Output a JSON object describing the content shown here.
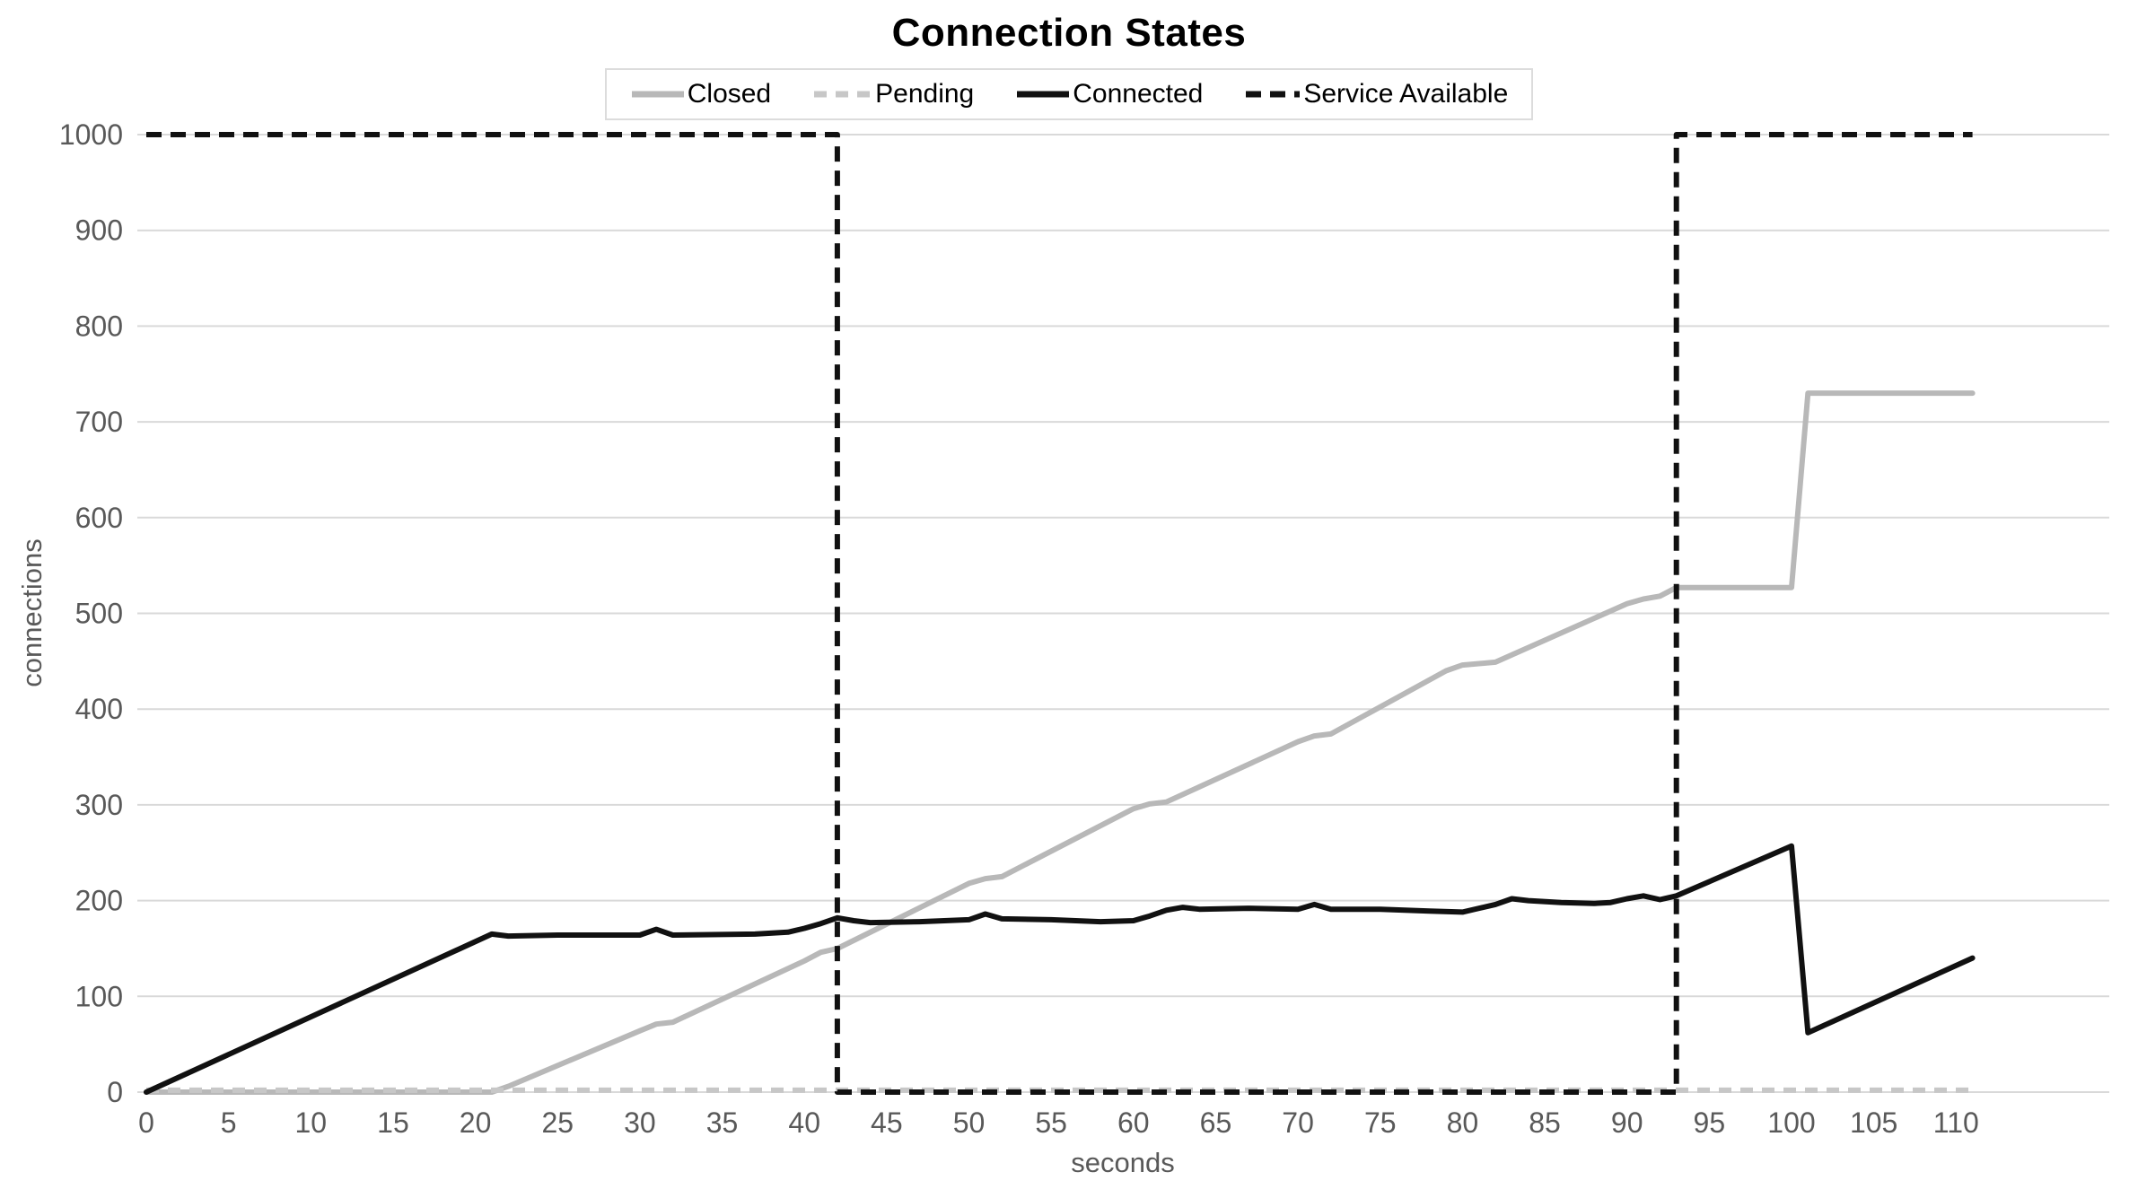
{
  "title": "Connection States",
  "legend": {
    "position": "top",
    "items": [
      {
        "label": "Closed"
      },
      {
        "label": "Pending"
      },
      {
        "label": "Connected"
      },
      {
        "label": "Service Available"
      }
    ]
  },
  "colors": {
    "closed_line": "#b8b8b8",
    "pending_line": "#c7c7c7",
    "connected_line": "#111111",
    "service_available_line": "#111111",
    "gridline": "#d9d9d9",
    "tick_text": "#595959",
    "title_text": "#000000",
    "legend_border": "#dcdcdc"
  },
  "chart_data": {
    "type": "line",
    "title": "Connection States",
    "xlabel": "seconds",
    "ylabel": "connections",
    "xlim": [
      0,
      119
    ],
    "ylim": [
      0,
      1000
    ],
    "x_ticks": [
      0,
      5,
      10,
      15,
      20,
      25,
      30,
      35,
      40,
      45,
      50,
      55,
      60,
      65,
      70,
      75,
      80,
      85,
      90,
      95,
      100,
      105,
      110
    ],
    "y_ticks": [
      0,
      100,
      200,
      300,
      400,
      500,
      600,
      700,
      800,
      900,
      1000
    ],
    "grid": "horizontal",
    "legend_position": "top",
    "series": [
      {
        "name": "Closed",
        "color": "#b8b8b8",
        "style": "solid",
        "width": 6,
        "dash": null,
        "points": [
          [
            0,
            0
          ],
          [
            21,
            0
          ],
          [
            22,
            6
          ],
          [
            30,
            64
          ],
          [
            31,
            71
          ],
          [
            32,
            73
          ],
          [
            40,
            137
          ],
          [
            41,
            146
          ],
          [
            42,
            150
          ],
          [
            50,
            218
          ],
          [
            51,
            223
          ],
          [
            52,
            225
          ],
          [
            60,
            296
          ],
          [
            61,
            301
          ],
          [
            62,
            303
          ],
          [
            70,
            366
          ],
          [
            71,
            372
          ],
          [
            72,
            374
          ],
          [
            79,
            440
          ],
          [
            80,
            446
          ],
          [
            82,
            449
          ],
          [
            90,
            510
          ],
          [
            91,
            515
          ],
          [
            92,
            518
          ],
          [
            93,
            527
          ],
          [
            100,
            527
          ],
          [
            101,
            730
          ],
          [
            111,
            730
          ]
        ]
      },
      {
        "name": "Pending",
        "color": "#c7c7c7",
        "style": "dashed",
        "width": 6,
        "dash": [
          14,
          10
        ],
        "points": [
          [
            0,
            2
          ],
          [
            111,
            2
          ]
        ]
      },
      {
        "name": "Connected",
        "color": "#111111",
        "style": "solid",
        "width": 6,
        "dash": null,
        "points": [
          [
            0,
            0
          ],
          [
            21,
            165
          ],
          [
            22,
            163
          ],
          [
            25,
            164
          ],
          [
            30,
            164
          ],
          [
            31,
            170
          ],
          [
            32,
            164
          ],
          [
            37,
            165
          ],
          [
            39,
            167
          ],
          [
            40,
            171
          ],
          [
            41,
            176
          ],
          [
            42,
            182
          ],
          [
            43,
            179
          ],
          [
            44,
            177
          ],
          [
            47,
            178
          ],
          [
            50,
            180
          ],
          [
            51,
            186
          ],
          [
            52,
            181
          ],
          [
            55,
            180
          ],
          [
            58,
            178
          ],
          [
            60,
            179
          ],
          [
            61,
            184
          ],
          [
            62,
            190
          ],
          [
            63,
            193
          ],
          [
            64,
            191
          ],
          [
            67,
            192
          ],
          [
            70,
            191
          ],
          [
            71,
            196
          ],
          [
            72,
            191
          ],
          [
            75,
            191
          ],
          [
            78,
            189
          ],
          [
            80,
            188
          ],
          [
            82,
            196
          ],
          [
            83,
            202
          ],
          [
            84,
            200
          ],
          [
            86,
            198
          ],
          [
            88,
            197
          ],
          [
            89,
            198
          ],
          [
            90,
            202
          ],
          [
            91,
            205
          ],
          [
            92,
            201
          ],
          [
            93,
            205
          ],
          [
            100,
            257
          ],
          [
            101,
            62
          ],
          [
            111,
            140
          ]
        ]
      },
      {
        "name": "Service Available",
        "color": "#111111",
        "style": "dashed",
        "width": 6,
        "dash": [
          17,
          10
        ],
        "points": [
          [
            0,
            1000
          ],
          [
            42,
            1000
          ],
          [
            42,
            0
          ],
          [
            93,
            0
          ],
          [
            93,
            1000
          ],
          [
            111,
            1000
          ]
        ]
      }
    ]
  }
}
